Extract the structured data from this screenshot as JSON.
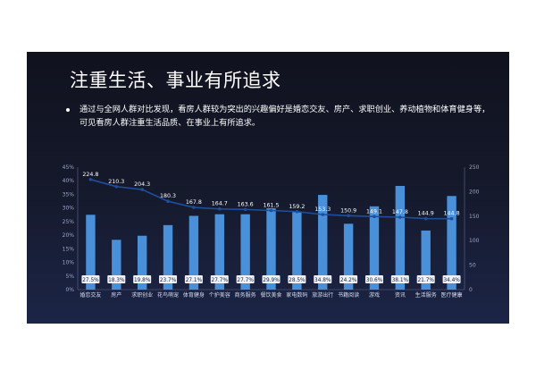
{
  "slide": {
    "title": "注重生活、事业有所追求",
    "bullet": "通过与全网人群对比发现，看房人群较为突出的兴趣偏好是婚恋交友、房产、求职创业、养动植物和体育健身等，可见看房人群注重生活品质、在事业上有所追求。"
  },
  "chart_data": {
    "type": "bar",
    "categories": [
      "婚恋交友",
      "房产",
      "求职创业",
      "花鸟萌宠",
      "体育健身",
      "个护美容",
      "商务服务",
      "餐饮美食",
      "家电数码",
      "旅游出行",
      "书籍阅读",
      "游戏",
      "资讯",
      "生活服务",
      "医疗健康"
    ],
    "series": [
      {
        "type": "bar",
        "axis": "left",
        "values": [
          27.5,
          18.3,
          19.8,
          23.7,
          27.1,
          27.7,
          27.7,
          29.9,
          28.5,
          34.8,
          24.2,
          30.6,
          38.1,
          21.7,
          34.4
        ],
        "labels": [
          "27.5%",
          "18.3%",
          "19.8%",
          "23.7%",
          "27.1%",
          "27.7%",
          "27.7%",
          "29.9%",
          "28.5%",
          "34.8%",
          "24.2%",
          "30.6%",
          "38.1%",
          "21.7%",
          "34.4%"
        ],
        "color": "#4a90d9"
      },
      {
        "type": "line",
        "axis": "right",
        "values": [
          224.8,
          210.3,
          204.3,
          180.3,
          167.8,
          164.7,
          163.6,
          161.5,
          159.2,
          153.3,
          150.9,
          149.1,
          147.8,
          144.9,
          144.8
        ],
        "labels": [
          "224.8",
          "210.3",
          "204.3",
          "180.3",
          "167.8",
          "164.7",
          "163.6",
          "161.5",
          "159.2",
          "153.3",
          "150.9",
          "149.1",
          "147.8",
          "144.9",
          "144.8"
        ],
        "color": "#1f4e9e"
      }
    ],
    "y_left": {
      "range": [
        0,
        45
      ],
      "ticks": [
        "0%",
        "5%",
        "10%",
        "15%",
        "20%",
        "25%",
        "30%",
        "35%",
        "40%",
        "45%"
      ]
    },
    "y_right": {
      "range": [
        0,
        250
      ],
      "ticks": [
        "0",
        "50",
        "100",
        "150",
        "200",
        "250"
      ]
    },
    "grid": false,
    "legend": "none"
  }
}
